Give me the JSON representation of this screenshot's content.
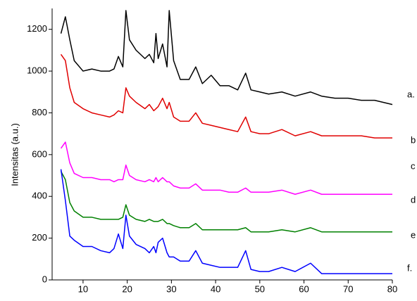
{
  "chart_data": {
    "type": "line",
    "y_label": "Intensitas (a.u.)",
    "x": [
      5,
      6,
      7,
      8,
      10,
      12,
      14,
      16,
      17,
      18,
      19,
      19.7,
      20.5,
      22,
      24,
      25,
      26,
      26.5,
      27,
      28,
      29,
      29.5,
      30.5,
      32,
      34,
      35.5,
      37,
      39,
      41,
      43,
      45,
      46.8,
      48,
      50,
      52,
      55,
      58,
      61.5,
      64,
      67,
      70,
      73,
      76,
      80
    ],
    "series": [
      {
        "color": "#000000",
        "values": [
          1180,
          1260,
          1150,
          1050,
          1000,
          1010,
          1000,
          1000,
          1010,
          1070,
          1020,
          1290,
          1150,
          1100,
          1060,
          1080,
          1040,
          1180,
          1060,
          1130,
          1020,
          1290,
          1050,
          960,
          960,
          1020,
          940,
          980,
          930,
          930,
          910,
          990,
          910,
          900,
          890,
          900,
          880,
          900,
          880,
          870,
          870,
          860,
          860,
          840
        ]
      },
      {
        "color": "#e00000",
        "values": [
          1080,
          1050,
          920,
          850,
          820,
          800,
          790,
          780,
          790,
          810,
          800,
          920,
          880,
          850,
          820,
          840,
          810,
          820,
          830,
          870,
          820,
          850,
          780,
          760,
          760,
          800,
          750,
          740,
          730,
          720,
          710,
          780,
          710,
          700,
          700,
          720,
          690,
          710,
          690,
          690,
          690,
          690,
          680,
          680
        ]
      },
      {
        "color": "#ff00ff",
        "values": [
          630,
          660,
          560,
          510,
          490,
          490,
          480,
          480,
          470,
          480,
          480,
          550,
          500,
          480,
          470,
          480,
          470,
          490,
          470,
          490,
          470,
          470,
          450,
          440,
          440,
          460,
          430,
          430,
          430,
          420,
          420,
          440,
          420,
          420,
          420,
          430,
          410,
          430,
          410,
          410,
          410,
          410,
          410,
          410
        ]
      },
      {
        "color": "#008000",
        "values": [
          520,
          480,
          370,
          330,
          300,
          300,
          290,
          290,
          290,
          290,
          300,
          360,
          310,
          290,
          280,
          290,
          280,
          280,
          280,
          290,
          270,
          270,
          260,
          250,
          250,
          270,
          240,
          240,
          240,
          240,
          240,
          250,
          230,
          230,
          230,
          240,
          230,
          250,
          230,
          230,
          230,
          230,
          230,
          230
        ]
      },
      {
        "color": "#0000ff",
        "values": [
          530,
          380,
          210,
          190,
          160,
          160,
          140,
          130,
          150,
          220,
          150,
          310,
          210,
          170,
          150,
          130,
          160,
          130,
          180,
          200,
          130,
          110,
          110,
          90,
          90,
          140,
          80,
          70,
          60,
          60,
          60,
          140,
          50,
          40,
          40,
          60,
          40,
          80,
          30,
          30,
          30,
          30,
          30,
          30
        ]
      }
    ],
    "annotations": [
      "a.",
      "b",
      "c",
      "d",
      "e",
      "f."
    ],
    "xlim": [
      3,
      80
    ],
    "ylim": [
      0,
      1300
    ],
    "xticks": [
      10,
      20,
      30,
      40,
      50,
      60,
      70,
      80
    ],
    "yticks": [
      0,
      200,
      400,
      600,
      800,
      1000,
      1200
    ]
  }
}
